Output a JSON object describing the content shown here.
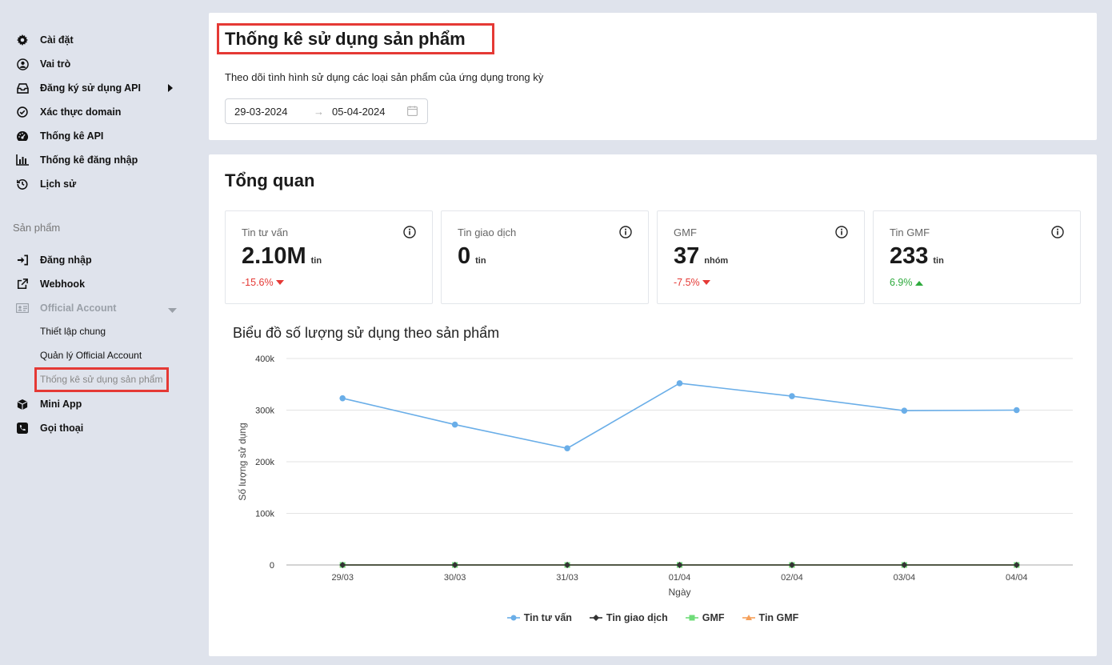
{
  "sidebar": {
    "items": [
      {
        "label": "Cài đặt",
        "icon": "gear-icon"
      },
      {
        "label": "Vai trò",
        "icon": "user-circle-icon"
      },
      {
        "label": "Đăng ký sử dụng API",
        "icon": "inbox-icon"
      },
      {
        "label": "Xác thực domain",
        "icon": "check-circle-icon"
      },
      {
        "label": "Thống kê API",
        "icon": "gauge-icon"
      },
      {
        "label": "Thống kê đăng nhập",
        "icon": "bar-chart-icon"
      },
      {
        "label": "Lịch sử",
        "icon": "history-icon"
      }
    ],
    "section_label": "Sản phẩm",
    "product_items": [
      {
        "label": "Đăng nhập",
        "icon": "sign-in-icon"
      },
      {
        "label": "Webhook",
        "icon": "external-link-icon"
      },
      {
        "label": "Official Account",
        "icon": "id-card-icon"
      }
    ],
    "sub_items": [
      {
        "label": "Thiết lập chung"
      },
      {
        "label": "Quản lý Official Account"
      },
      {
        "label": "Thống kê sử dụng sản phẩm"
      }
    ],
    "bottom_items": [
      {
        "label": "Mini App",
        "icon": "cube-icon"
      },
      {
        "label": "Gọi thoại",
        "icon": "phone-icon"
      }
    ]
  },
  "header": {
    "title": "Thống kê sử dụng sản phẩm",
    "description": "Theo dõi tình hình sử dụng các loại sản phẩm của ứng dụng trong kỳ",
    "date_from": "29-03-2024",
    "date_sep": "→",
    "date_to": "05-04-2024"
  },
  "overview": {
    "title": "Tổng quan",
    "stats": [
      {
        "label": "Tin tư vấn",
        "value": "2.10M",
        "unit": "tin",
        "change": "-15.6%",
        "direction": "down"
      },
      {
        "label": "Tin giao dịch",
        "value": "0",
        "unit": "tin",
        "change": "",
        "direction": "none"
      },
      {
        "label": "GMF",
        "value": "37",
        "unit": "nhóm",
        "change": "-7.5%",
        "direction": "down"
      },
      {
        "label": "Tin GMF",
        "value": "233",
        "unit": "tin",
        "change": "6.9%",
        "direction": "up"
      }
    ]
  },
  "chart_data": {
    "type": "line",
    "title": "Biểu đồ số lượng sử dụng theo sản phẩm",
    "xlabel": "Ngày",
    "ylabel": "Số lượng sử dụng",
    "categories": [
      "29/03",
      "30/03",
      "31/03",
      "01/04",
      "02/04",
      "03/04",
      "04/04"
    ],
    "y_ticks": [
      "0",
      "100k",
      "200k",
      "300k",
      "400k"
    ],
    "ylim": [
      0,
      400000
    ],
    "grid": true,
    "legend": "bottom",
    "series": [
      {
        "name": "Tin tư vấn",
        "color": "#6aaee8",
        "marker": "circle",
        "values": [
          323000,
          272000,
          226000,
          352000,
          327000,
          299000,
          300000
        ]
      },
      {
        "name": "Tin giao dịch",
        "color": "#333333",
        "marker": "diamond",
        "values": [
          0,
          0,
          0,
          0,
          0,
          0,
          0
        ]
      },
      {
        "name": "GMF",
        "color": "#6fdc79",
        "marker": "square",
        "values": [
          5,
          5,
          6,
          5,
          5,
          6,
          5
        ]
      },
      {
        "name": "Tin GMF",
        "color": "#f5a05a",
        "marker": "triangle",
        "values": [
          30,
          33,
          35,
          32,
          34,
          34,
          35
        ]
      }
    ]
  }
}
